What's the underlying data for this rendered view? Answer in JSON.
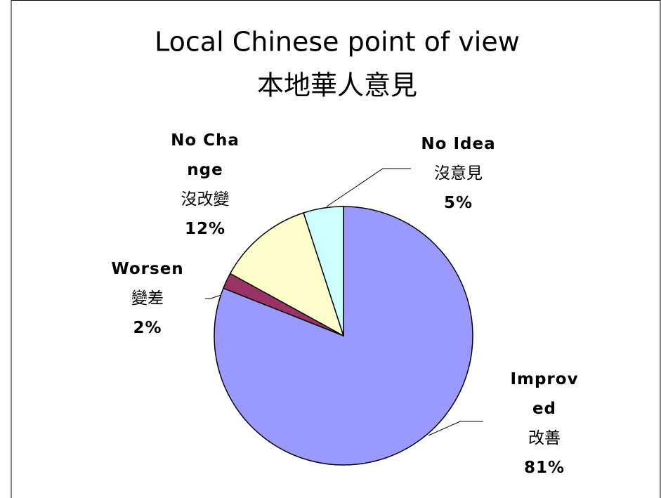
{
  "chart_data": {
    "type": "pie",
    "title": "Local Chinese point of view",
    "subtitle": "本地華人意見",
    "categories": [
      "Improved",
      "Worsen",
      "No Change",
      "No Idea"
    ],
    "categories_zh": [
      "改善",
      "變差",
      "沒改變",
      "沒意見"
    ],
    "values": [
      81,
      2,
      12,
      5
    ],
    "value_labels": [
      "81%",
      "2%",
      "12%",
      "5%"
    ],
    "colors": [
      "#9999ff",
      "#993366",
      "#ffffcc",
      "#ccffff"
    ]
  }
}
